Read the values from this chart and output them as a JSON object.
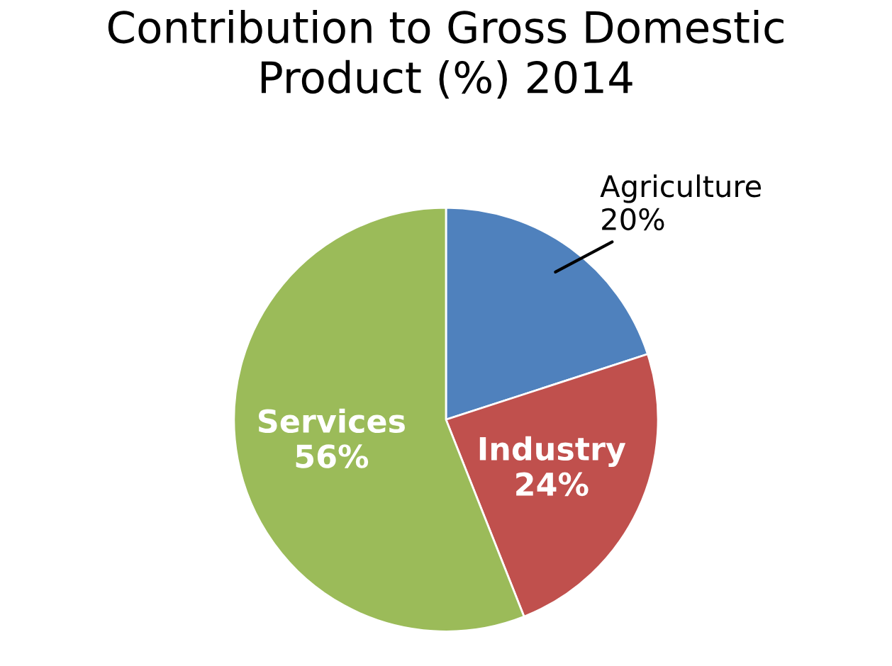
{
  "chart_data": {
    "type": "pie",
    "title": "Contribution to Gross Domestic\nProduct (%) 2014",
    "categories": [
      "Agriculture",
      "Industry",
      "Services"
    ],
    "values": [
      20,
      24,
      56
    ],
    "value_labels": [
      "20%",
      "24%",
      "56%"
    ],
    "colors": [
      "#4f81bd",
      "#c0504d",
      "#9bbb59"
    ]
  }
}
